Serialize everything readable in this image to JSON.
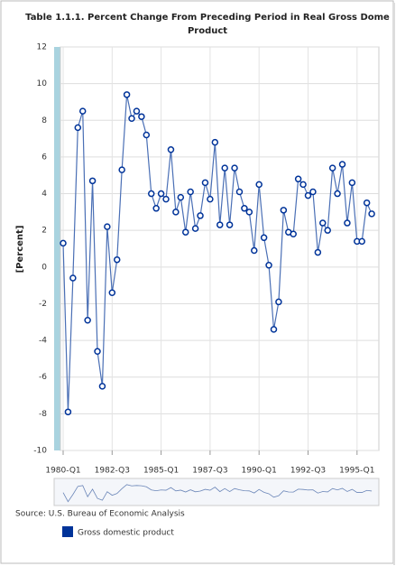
{
  "chart_data": {
    "type": "line",
    "title": [
      "Table 1.1.1. Percent Change From Preceding Period in Real Gross Dome",
      "Product"
    ],
    "y_label": "[Percent]",
    "source": "Source: U.S. Bureau of Economic Analysis",
    "categories": [
      "1980-Q1",
      null,
      null,
      null,
      null,
      null,
      null,
      null,
      null,
      null,
      "1982-Q3",
      null,
      null,
      null,
      null,
      null,
      null,
      null,
      null,
      null,
      "1985-Q1",
      null,
      null,
      null,
      null,
      null,
      null,
      null,
      null,
      null,
      "1987-Q3",
      null,
      null,
      null,
      null,
      null,
      null,
      null,
      null,
      null,
      "1990-Q1",
      null,
      null,
      null,
      null,
      null,
      null,
      null,
      null,
      null,
      "1992-Q3",
      null,
      null,
      null,
      null,
      null,
      null,
      null,
      null,
      null,
      "1995-Q1",
      null,
      null,
      null
    ],
    "series": [
      {
        "name": "Gross domestic product",
        "color": "#003399",
        "values": [
          1.3,
          -7.9,
          -0.6,
          7.6,
          8.5,
          -2.9,
          4.7,
          -4.6,
          -6.5,
          2.2,
          -1.4,
          0.4,
          5.3,
          9.4,
          8.1,
          8.5,
          8.2,
          7.2,
          4.0,
          3.2,
          4.0,
          3.7,
          6.4,
          3.0,
          3.8,
          1.9,
          4.1,
          2.1,
          2.8,
          4.6,
          3.7,
          6.8,
          2.3,
          5.4,
          2.3,
          5.4,
          4.1,
          3.2,
          3.0,
          0.9,
          4.5,
          1.6,
          0.1,
          -3.4,
          -1.9,
          3.1,
          1.9,
          1.8,
          4.8,
          4.5,
          3.9,
          4.1,
          0.8,
          2.4,
          2.0,
          5.4,
          4.0,
          5.6,
          2.4,
          4.6,
          1.4,
          1.4,
          3.5,
          2.9
        ]
      }
    ],
    "ylim": [
      -10,
      12
    ],
    "yticks": [
      -10,
      -8,
      -6,
      -4,
      -2,
      0,
      2,
      4,
      6,
      8,
      10,
      12
    ],
    "grid": true
  }
}
